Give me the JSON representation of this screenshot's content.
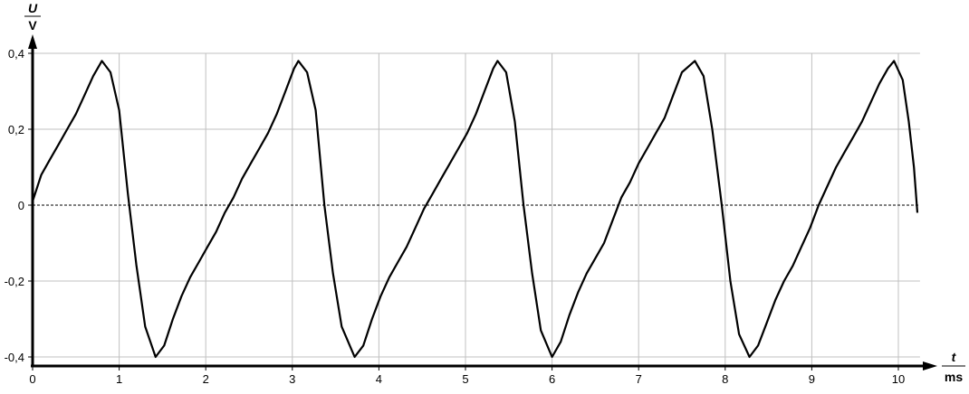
{
  "chart_data": {
    "type": "line",
    "title": "",
    "ylabel": {
      "quantity": "U",
      "unit": "V"
    },
    "xlabel": {
      "quantity": "t",
      "unit": "ms"
    },
    "xlim": [
      0,
      10.25
    ],
    "ylim": [
      -0.42,
      0.42
    ],
    "x_ticks": [
      0,
      1,
      2,
      3,
      4,
      5,
      6,
      7,
      8,
      9,
      10
    ],
    "x_tick_labels": [
      "0",
      "1",
      "2",
      "3",
      "4",
      "5",
      "6",
      "7",
      "8",
      "9",
      "10"
    ],
    "y_ticks": [
      0.4,
      0.2,
      0,
      -0.2,
      -0.4
    ],
    "y_tick_labels": [
      "0,4",
      "0,2",
      "0",
      "-0,2",
      "-0,4"
    ],
    "grid": true,
    "zero_line": "dotted",
    "colors": {
      "line": "#000000",
      "grid": "#c0c0c0",
      "axis": "#000000"
    },
    "series": [
      {
        "points": [
          [
            0,
            0.01
          ],
          [
            0.1,
            0.08
          ],
          [
            0.2,
            0.12
          ],
          [
            0.3,
            0.16
          ],
          [
            0.4,
            0.2
          ],
          [
            0.5,
            0.24
          ],
          [
            0.6,
            0.29
          ],
          [
            0.7,
            0.34
          ],
          [
            0.8,
            0.38
          ],
          [
            0.9,
            0.35
          ],
          [
            1.0,
            0.25
          ],
          [
            1.1,
            0.03
          ],
          [
            1.2,
            -0.16
          ],
          [
            1.3,
            -0.32
          ],
          [
            1.42,
            -0.4
          ],
          [
            1.52,
            -0.37
          ],
          [
            1.62,
            -0.3
          ],
          [
            1.72,
            -0.24
          ],
          [
            1.82,
            -0.19
          ],
          [
            1.92,
            -0.15
          ],
          [
            2.02,
            -0.11
          ],
          [
            2.12,
            -0.07
          ],
          [
            2.22,
            -0.02
          ],
          [
            2.32,
            0.02
          ],
          [
            2.42,
            0.07
          ],
          [
            2.52,
            0.11
          ],
          [
            2.62,
            0.15
          ],
          [
            2.72,
            0.19
          ],
          [
            2.82,
            0.24
          ],
          [
            2.92,
            0.3
          ],
          [
            3.02,
            0.36
          ],
          [
            3.07,
            0.38
          ],
          [
            3.17,
            0.35
          ],
          [
            3.27,
            0.25
          ],
          [
            3.37,
            0.0
          ],
          [
            3.47,
            -0.18
          ],
          [
            3.57,
            -0.32
          ],
          [
            3.72,
            -0.4
          ],
          [
            3.82,
            -0.37
          ],
          [
            3.92,
            -0.3
          ],
          [
            4.02,
            -0.24
          ],
          [
            4.12,
            -0.19
          ],
          [
            4.22,
            -0.15
          ],
          [
            4.32,
            -0.11
          ],
          [
            4.42,
            -0.06
          ],
          [
            4.52,
            -0.01
          ],
          [
            4.62,
            0.03
          ],
          [
            4.72,
            0.07
          ],
          [
            4.82,
            0.11
          ],
          [
            4.92,
            0.15
          ],
          [
            5.02,
            0.19
          ],
          [
            5.12,
            0.24
          ],
          [
            5.22,
            0.3
          ],
          [
            5.32,
            0.36
          ],
          [
            5.37,
            0.38
          ],
          [
            5.47,
            0.35
          ],
          [
            5.57,
            0.22
          ],
          [
            5.67,
            0.0
          ],
          [
            5.77,
            -0.18
          ],
          [
            5.87,
            -0.33
          ],
          [
            6.0,
            -0.4
          ],
          [
            6.1,
            -0.36
          ],
          [
            6.2,
            -0.29
          ],
          [
            6.3,
            -0.23
          ],
          [
            6.4,
            -0.18
          ],
          [
            6.5,
            -0.14
          ],
          [
            6.6,
            -0.1
          ],
          [
            6.7,
            -0.04
          ],
          [
            6.8,
            0.02
          ],
          [
            6.9,
            0.06
          ],
          [
            7.0,
            0.11
          ],
          [
            7.1,
            0.15
          ],
          [
            7.2,
            0.19
          ],
          [
            7.3,
            0.23
          ],
          [
            7.4,
            0.29
          ],
          [
            7.5,
            0.35
          ],
          [
            7.65,
            0.38
          ],
          [
            7.75,
            0.34
          ],
          [
            7.85,
            0.2
          ],
          [
            7.96,
            0.0
          ],
          [
            8.06,
            -0.2
          ],
          [
            8.16,
            -0.34
          ],
          [
            8.28,
            -0.4
          ],
          [
            8.38,
            -0.37
          ],
          [
            8.48,
            -0.31
          ],
          [
            8.58,
            -0.25
          ],
          [
            8.68,
            -0.2
          ],
          [
            8.78,
            -0.16
          ],
          [
            8.88,
            -0.11
          ],
          [
            8.98,
            -0.06
          ],
          [
            9.08,
            0.0
          ],
          [
            9.18,
            0.05
          ],
          [
            9.28,
            0.1
          ],
          [
            9.38,
            0.14
          ],
          [
            9.48,
            0.18
          ],
          [
            9.58,
            0.22
          ],
          [
            9.68,
            0.27
          ],
          [
            9.78,
            0.32
          ],
          [
            9.88,
            0.36
          ],
          [
            9.95,
            0.38
          ],
          [
            10.05,
            0.33
          ],
          [
            10.12,
            0.22
          ],
          [
            10.18,
            0.1
          ],
          [
            10.22,
            -0.02
          ]
        ]
      }
    ]
  }
}
